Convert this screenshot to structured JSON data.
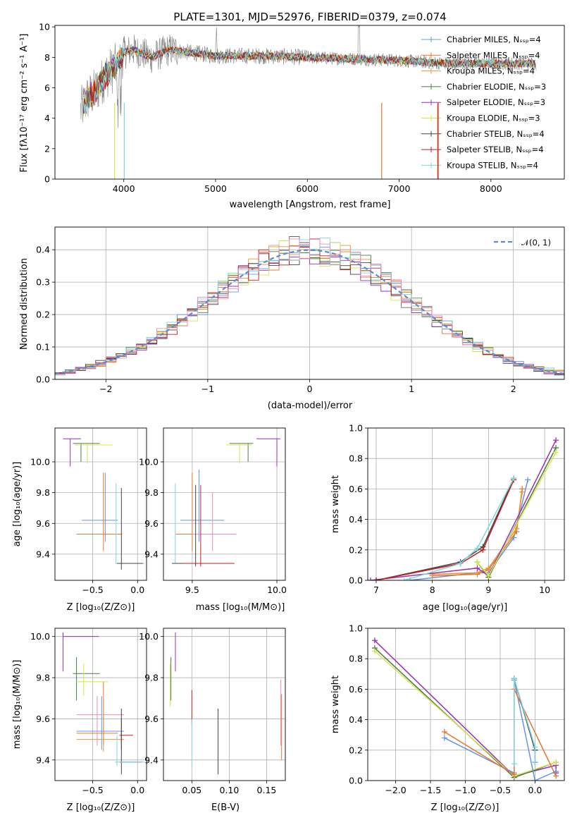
{
  "colors": {
    "Chabrier MILES": "#6495ED",
    "Salpeter MILES": "#E9762A",
    "Kroupa MILES": "#E8943A",
    "Chabrier ELODIE": "#4E7A4E",
    "Salpeter ELODIE": "#9A2FB8",
    "Kroupa ELODIE": "#D4E84A",
    "Chabrier STELIB": "#444444",
    "Salpeter STELIB": "#C41E1E",
    "Kroupa STELIB": "#7FD7DE",
    "data": "#808080",
    "gaussian": "#5B8BD0",
    "pink": "#E88CC0"
  },
  "chart_data": [
    {
      "type": "line",
      "title": "PLATE=1301, MJD=52976, FIBERID=0379, z=0.074",
      "xlabel": "wavelength [Angstrom, rest frame]",
      "ylabel": "Flux [fλ10⁻¹⁷ erg cm⁻² s⁻¹ A⁻¹]",
      "xlim": [
        3250,
        8800
      ],
      "ylim": [
        0,
        10.1
      ],
      "xticks": [
        "4000",
        "5000",
        "6000",
        "7000",
        "8000"
      ],
      "yticks": [
        "0",
        "2",
        "4",
        "6",
        "8",
        "10"
      ],
      "legend_position": "right",
      "legend": [
        {
          "name": "Chabrier MILES",
          "label": "Chabrier MILES, Nₛₛₚ=4"
        },
        {
          "name": "Salpeter MILES",
          "label": "Salpeter MILES, Nₛₛₚ=4"
        },
        {
          "name": "Kroupa MILES",
          "label": "Kroupa MILES, Nₛₛₚ=4"
        },
        {
          "name": "Chabrier ELODIE",
          "label": "Chabrier ELODIE, Nₛₛₚ=3"
        },
        {
          "name": "Salpeter ELODIE",
          "label": "Salpeter ELODIE, Nₛₛₚ=3"
        },
        {
          "name": "Kroupa ELODIE",
          "label": "Kroupa ELODIE, Nₛₛₚ=3"
        },
        {
          "name": "Chabrier STELIB",
          "label": "Chabrier STELIB, Nₛₛₚ=4"
        },
        {
          "name": "Salpeter STELIB",
          "label": "Salpeter STELIB, Nₛₛₚ=4"
        },
        {
          "name": "Kroupa STELIB",
          "label": "Kroupa STELIB, Nₛₛₚ=4"
        }
      ],
      "data_envelope": {
        "x": [
          3530,
          3600,
          3700,
          3800,
          3900,
          4000,
          4100,
          4300,
          4500,
          5000,
          5500,
          6000,
          6500,
          7000,
          7500,
          8000,
          8500
        ],
        "y": [
          4.5,
          5.3,
          5.8,
          6.8,
          7.3,
          8.3,
          8.5,
          8.0,
          8.5,
          8.1,
          8.1,
          8.0,
          7.9,
          7.8,
          7.6,
          7.6,
          7.6
        ]
      }
    },
    {
      "type": "bar",
      "xlabel": "(data-model)/error",
      "ylabel": "Normed distribution",
      "xlim": [
        -2.5,
        2.5
      ],
      "ylim": [
        0,
        0.47
      ],
      "xticks": [
        "−2",
        "−1",
        "0",
        "1",
        "2"
      ],
      "yticks": [
        "0.0",
        "0.1",
        "0.2",
        "0.3",
        "0.4"
      ],
      "bin_width": 0.1,
      "legend": [
        "𝒩(0, 1)"
      ],
      "legend_position": "top-right"
    },
    {
      "type": "scatter",
      "xlabel": "Z [log₁₀(Z/Z⊙)]",
      "ylabel": "age  [log₁₀(age/yr)]",
      "xlim": [
        -0.92,
        0.1
      ],
      "ylim": [
        9.23,
        10.22
      ],
      "xticks": [
        "−0.5",
        "0.0"
      ],
      "yticks": [
        "9.4",
        "9.6",
        "9.8",
        "10.0"
      ],
      "points": [
        {
          "s": "Salpeter ELODIE",
          "x": -0.75,
          "y": 10.15,
          "xl": -0.83,
          "xh": -0.63,
          "yl": 9.97,
          "yh": 10.15
        },
        {
          "s": "Chabrier ELODIE",
          "x": -0.63,
          "y": 10.12,
          "xl": -0.72,
          "xh": -0.42,
          "yl": 10.0,
          "yh": 10.12
        },
        {
          "s": "Kroupa ELODIE",
          "x": -0.56,
          "y": 10.11,
          "xl": -0.7,
          "xh": -0.28,
          "yl": 9.99,
          "yh": 10.11
        },
        {
          "s": "Chabrier MILES",
          "x": -0.36,
          "y": 9.62,
          "xl": -0.62,
          "xh": -0.22,
          "yl": 9.48,
          "yh": 9.93
        },
        {
          "s": "Salpeter MILES",
          "x": -0.38,
          "y": 9.53,
          "xl": -0.68,
          "xh": -0.17,
          "yl": 9.42,
          "yh": 9.93
        },
        {
          "s": "Kroupa STELIB",
          "x": -0.24,
          "y": 9.34,
          "xl": -0.25,
          "xh": 0.08,
          "yl": 9.34,
          "yh": 9.86
        },
        {
          "s": "Chabrier STELIB",
          "x": -0.18,
          "y": 9.34,
          "xl": -0.23,
          "xh": 0.06,
          "yl": 9.3,
          "yh": 9.83
        }
      ]
    },
    {
      "type": "scatter",
      "xlabel": "mass [log₁₀(M/M⊙)]",
      "ylabel": "",
      "xlim": [
        9.33,
        10.05
      ],
      "ylim": [
        9.23,
        10.22
      ],
      "xticks": [
        "9.5",
        "10.0"
      ],
      "yticks": [
        "9.4",
        "9.6",
        "9.8",
        "10.0"
      ],
      "points": [
        {
          "s": "Salpeter ELODIE",
          "x": 10.0,
          "y": 10.15,
          "xl": 9.88,
          "xh": 10.02,
          "yl": 9.97,
          "yh": 10.15
        },
        {
          "s": "Chabrier ELODIE",
          "x": 9.83,
          "y": 10.12,
          "xl": 9.72,
          "xh": 9.86,
          "yl": 10.0,
          "yh": 10.12
        },
        {
          "s": "Kroupa ELODIE",
          "x": 9.78,
          "y": 10.11,
          "xl": 9.7,
          "xh": 9.85,
          "yl": 9.99,
          "yh": 10.11
        },
        {
          "s": "Chabrier MILES",
          "x": 9.54,
          "y": 9.62,
          "xl": 9.43,
          "xh": 9.69,
          "yl": 9.48,
          "yh": 9.95
        },
        {
          "s": "Salpeter MILES",
          "x": 9.5,
          "y": 9.53,
          "xl": 9.4,
          "xh": 9.68,
          "yl": 9.42,
          "yh": 9.93
        },
        {
          "s": "pink",
          "x": 9.62,
          "y": 9.53,
          "xl": 9.5,
          "xh": 9.76,
          "yl": 9.42,
          "yh": 9.8
        },
        {
          "s": "Kroupa STELIB",
          "x": 9.4,
          "y": 9.34,
          "xl": 9.38,
          "xh": 9.66,
          "yl": 9.34,
          "yh": 9.86
        },
        {
          "s": "Chabrier STELIB",
          "x": 9.52,
          "y": 9.34,
          "xl": 9.38,
          "xh": 9.7,
          "yl": 9.32,
          "yh": 9.85
        },
        {
          "s": "Salpeter STELIB",
          "x": 9.55,
          "y": 9.34,
          "xl": 9.45,
          "xh": 9.75,
          "yl": 9.32,
          "yh": 9.85
        }
      ]
    },
    {
      "type": "line",
      "xlabel": "age  [log₁₀(age/yr)]",
      "ylabel": "mass weight",
      "xlim": [
        6.85,
        10.35
      ],
      "ylim": [
        0,
        1.0
      ],
      "xticks": [
        "7",
        "8",
        "9",
        "10"
      ],
      "yticks": [
        "0.0",
        "0.2",
        "0.4",
        "0.6",
        "0.8",
        "1.0"
      ],
      "series": [
        {
          "name": "Chabrier MILES",
          "x": [
            7.6,
            8.8,
            9.0,
            9.45,
            9.7
          ],
          "y": [
            0.0,
            0.05,
            0.05,
            0.28,
            0.66
          ]
        },
        {
          "name": "Salpeter MILES",
          "x": [
            8.0,
            8.8,
            9.0,
            9.5,
            9.6
          ],
          "y": [
            0.03,
            0.04,
            0.07,
            0.32,
            0.6
          ]
        },
        {
          "name": "Kroupa MILES",
          "x": [
            8.0,
            8.8,
            9.0,
            9.5,
            9.6
          ],
          "y": [
            0.04,
            0.05,
            0.08,
            0.34,
            0.58
          ]
        },
        {
          "name": "Chabrier ELODIE",
          "x": [
            8.8,
            9.0,
            10.2
          ],
          "y": [
            0.12,
            0.02,
            0.87
          ]
        },
        {
          "name": "Salpeter ELODIE",
          "x": [
            6.9,
            8.8,
            9.0,
            10.2
          ],
          "y": [
            0.0,
            0.08,
            0.03,
            0.92
          ]
        },
        {
          "name": "Kroupa ELODIE",
          "x": [
            8.8,
            9.0,
            10.2
          ],
          "y": [
            0.12,
            0.03,
            0.84
          ]
        },
        {
          "name": "Chabrier STELIB",
          "x": [
            7.0,
            8.5,
            8.9,
            9.45
          ],
          "y": [
            0.0,
            0.12,
            0.22,
            0.67
          ]
        },
        {
          "name": "Salpeter STELIB",
          "x": [
            7.0,
            8.5,
            8.9,
            9.45
          ],
          "y": [
            0.0,
            0.11,
            0.2,
            0.66
          ]
        },
        {
          "name": "Kroupa STELIB",
          "x": [
            7.5,
            8.5,
            8.8,
            9.45
          ],
          "y": [
            0.0,
            0.11,
            0.21,
            0.67
          ]
        }
      ]
    },
    {
      "type": "scatter",
      "xlabel": "Z [log₁₀(Z/Z⊙)]",
      "ylabel": "mass [log₁₀(M/M⊙)]",
      "xlim": [
        -0.92,
        0.1
      ],
      "ylim": [
        9.3,
        10.04
      ],
      "xticks": [
        "−0.5",
        "0.0"
      ],
      "yticks": [
        "9.4",
        "9.6",
        "9.8",
        "10.0"
      ],
      "points": [
        {
          "s": "Salpeter ELODIE",
          "x": -0.83,
          "y": 10.0,
          "xl": -0.83,
          "xh": -0.43,
          "yl": 9.83,
          "yh": 10.02
        },
        {
          "s": "Chabrier ELODIE",
          "x": -0.68,
          "y": 9.82,
          "xl": -0.72,
          "xh": -0.42,
          "yl": 9.69,
          "yh": 9.9
        },
        {
          "s": "Kroupa ELODIE",
          "x": -0.6,
          "y": 9.78,
          "xl": -0.68,
          "xh": -0.33,
          "yl": 9.71,
          "yh": 9.87
        },
        {
          "s": "Salpeter MILES",
          "x": -0.38,
          "y": 9.53,
          "xl": -0.68,
          "xh": -0.22,
          "yl": 9.47,
          "yh": 9.78
        },
        {
          "s": "Chabrier MILES",
          "x": -0.4,
          "y": 9.54,
          "xl": -0.68,
          "xh": -0.15,
          "yl": 9.45,
          "yh": 9.71
        },
        {
          "s": "Kroupa MILES",
          "x": -0.38,
          "y": 9.5,
          "xl": -0.68,
          "xh": -0.15,
          "yl": 9.44,
          "yh": 9.69
        },
        {
          "s": "pink",
          "x": -0.45,
          "y": 9.62,
          "xl": -0.68,
          "xh": -0.15,
          "yl": 9.47,
          "yh": 9.71
        },
        {
          "s": "Salpeter STELIB",
          "x": -0.18,
          "y": 9.52,
          "xl": -0.2,
          "xh": -0.05,
          "yl": 9.45,
          "yh": 9.6
        },
        {
          "s": "Chabrier STELIB",
          "x": -0.18,
          "y": 9.39,
          "xl": -0.2,
          "xh": 0.05,
          "yl": 9.33,
          "yh": 9.65
        },
        {
          "s": "Kroupa STELIB",
          "x": -0.23,
          "y": 9.39,
          "xl": -0.25,
          "xh": 0.08,
          "yl": 9.37,
          "yh": 9.52
        }
      ]
    },
    {
      "type": "scatter",
      "xlabel": "E(B-V)",
      "ylabel": "",
      "xlim": [
        0.012,
        0.175
      ],
      "ylim": [
        9.3,
        10.04
      ],
      "xticks": [
        "0.05",
        "0.10",
        "0.15"
      ],
      "yticks": [
        "9.4",
        "9.6",
        "9.8",
        "10.0"
      ],
      "points": [
        {
          "s": "Salpeter ELODIE",
          "x": 0.028,
          "y": 10.0,
          "xl": 0.028,
          "xh": 0.028,
          "yl": 9.83,
          "yh": 10.02
        },
        {
          "s": "Chabrier ELODIE",
          "x": 0.022,
          "y": 9.82,
          "xl": 0.022,
          "xh": 0.022,
          "yl": 9.69,
          "yh": 9.9
        },
        {
          "s": "Kroupa ELODIE",
          "x": 0.021,
          "y": 9.78,
          "xl": 0.021,
          "xh": 0.021,
          "yl": 9.66,
          "yh": 9.87
        },
        {
          "s": "Salpeter STELIB",
          "x": 0.05,
          "y": 9.65,
          "xl": 0.05,
          "xh": 0.05,
          "yl": 9.58,
          "yh": 9.74
        },
        {
          "s": "Kroupa STELIB",
          "x": 0.05,
          "y": 9.45,
          "xl": 0.05,
          "xh": 0.05,
          "yl": 9.37,
          "yh": 9.6
        },
        {
          "s": "Chabrier STELIB",
          "x": 0.085,
          "y": 9.45,
          "xl": 0.085,
          "xh": 0.085,
          "yl": 9.33,
          "yh": 9.65
        },
        {
          "s": "pink",
          "x": 0.169,
          "y": 9.62,
          "xl": 0.169,
          "xh": 0.169,
          "yl": 9.47,
          "yh": 9.79
        },
        {
          "s": "Salpeter MILES",
          "x": 0.17,
          "y": 9.55,
          "xl": 0.17,
          "xh": 0.17,
          "yl": 9.4,
          "yh": 9.72
        }
      ]
    },
    {
      "type": "line",
      "xlabel": "Z [log₁₀(Z/Z⊙)]",
      "ylabel": "mass weight",
      "xlim": [
        -2.4,
        0.42
      ],
      "ylim": [
        0,
        1.0
      ],
      "xticks": [
        "−2.0",
        "−1.5",
        "−1.0",
        "−0.5",
        "0.0"
      ],
      "yticks": [
        "0.0",
        "0.2",
        "0.4",
        "0.6",
        "0.8",
        "1.0"
      ],
      "series": [
        {
          "name": "Salpeter ELODIE",
          "x": [
            -2.3,
            -0.3,
            0.3,
            0.3
          ],
          "y": [
            0.92,
            0.03,
            0.1,
            0.05
          ]
        },
        {
          "name": "Chabrier ELODIE",
          "x": [
            -2.3,
            -0.3,
            0.3
          ],
          "y": [
            0.87,
            0.02,
            0.12
          ]
        },
        {
          "name": "Kroupa ELODIE",
          "x": [
            -2.3,
            -0.3,
            0.3
          ],
          "y": [
            0.85,
            0.03,
            0.12
          ]
        },
        {
          "name": "Chabrier MILES",
          "x": [
            -1.3,
            -0.3,
            -0.3,
            0.0,
            0.3
          ],
          "y": [
            0.28,
            0.05,
            0.66,
            0.0,
            0.06
          ]
        },
        {
          "name": "Salpeter MILES",
          "x": [
            -1.3,
            -0.3,
            -0.3,
            0.3
          ],
          "y": [
            0.32,
            0.04,
            0.6,
            0.03
          ]
        },
        {
          "name": "Chabrier STELIB",
          "x": [
            -0.3,
            0.0,
            0.0
          ],
          "y": [
            0.67,
            0.2,
            0.12
          ]
        },
        {
          "name": "Kroupa STELIB",
          "x": [
            -0.3,
            -0.3,
            0.0,
            0.0
          ],
          "y": [
            0.11,
            0.67,
            0.22,
            0.12
          ]
        }
      ]
    }
  ]
}
